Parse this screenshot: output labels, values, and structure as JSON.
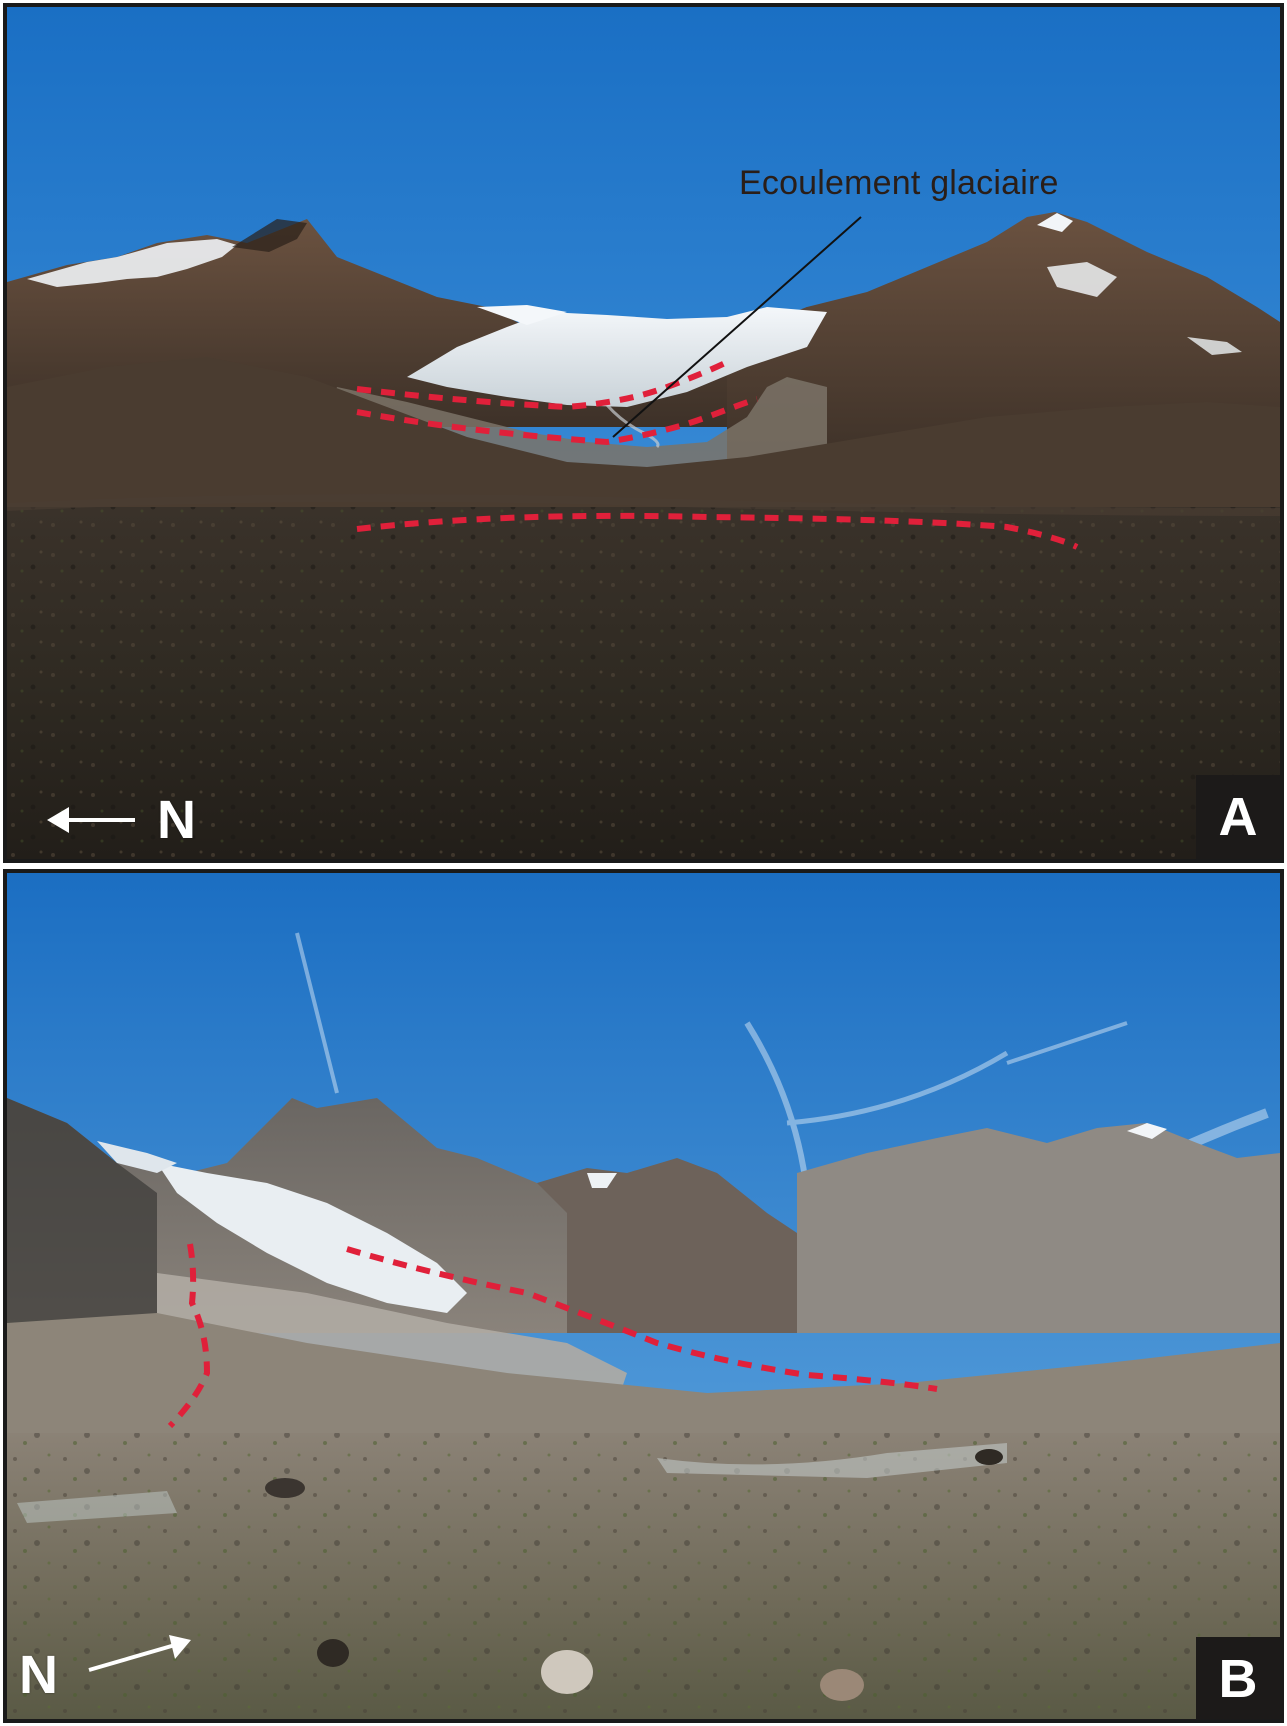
{
  "panel_a": {
    "letter": "A",
    "annotation": "Ecoulement glaciaire",
    "north_label": "N",
    "north_direction": "left"
  },
  "panel_b": {
    "letter": "B",
    "north_label": "N",
    "north_direction": "right"
  },
  "colors": {
    "sky_top": "#1a6fc4",
    "sky_bottom": "#5aa8e6",
    "ice": "#e8eef2",
    "boundary_dash": "#e0203a",
    "frame": "#1a1a1a",
    "label_box": "#1c1a19"
  }
}
